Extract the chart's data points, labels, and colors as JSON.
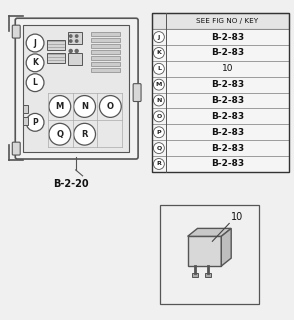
{
  "background_color": "#f0f0f0",
  "relay_box_label": "B-2-20",
  "table_rows": [
    [
      "J",
      "B-2-83"
    ],
    [
      "K",
      "B-2-83"
    ],
    [
      "L",
      "10"
    ],
    [
      "M",
      "B-2-83"
    ],
    [
      "N",
      "B-2-83"
    ],
    [
      "O",
      "B-2-83"
    ],
    [
      "P",
      "B-2-83"
    ],
    [
      "Q",
      "B-2-83"
    ],
    [
      "R",
      "B-2-83"
    ]
  ],
  "relay_label": "10",
  "fig_width": 2.94,
  "fig_height": 3.2
}
